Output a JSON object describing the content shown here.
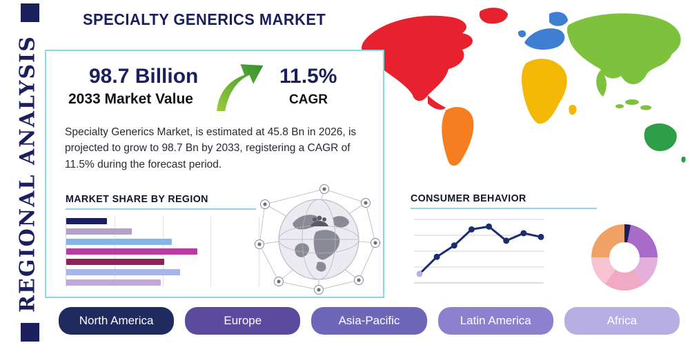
{
  "page": {
    "title": "SPECIALTY GENERICS MARKET",
    "sidebar_label": "REGIONAL ANALYSIS",
    "accent_color": "#8ed6e6",
    "brand_navy": "#1b1f5e"
  },
  "stats": {
    "market_value": "98.7 Billion",
    "market_value_label": "2033 Market Value",
    "cagr_value": "11.5%",
    "cagr_label": "CAGR",
    "growth_icon": "growth-arrow-icon",
    "growth_icon_color": "#3a9e3a"
  },
  "description": "Specialty Generics Market, is estimated at 45.8 Bn in 2026, is projected to grow to 98.7 Bn by 2033, registering a CAGR of 11.5% during the forecast period.",
  "sections": {
    "market_share_heading": "MARKET SHARE BY REGION",
    "consumer_behavior_heading": "CONSUMER BEHAVIOR"
  },
  "map": {
    "north_america": "#e8212e",
    "south_america": "#f57f20",
    "europe": "#3f7fd1",
    "africa": "#f3b705",
    "asia": "#7ec13d",
    "australia": "#2f9e49"
  },
  "region_buttons": [
    {
      "label": "North America",
      "color": "#1f2a5e"
    },
    {
      "label": "Europe",
      "color": "#5c4a9e"
    },
    {
      "label": "Asia-Pacific",
      "color": "#6e66b8"
    },
    {
      "label": "Latin America",
      "color": "#8d80cf"
    },
    {
      "label": "Africa",
      "color": "#b7aee3"
    }
  ],
  "chart_data": [
    {
      "id": "market_share_bars",
      "type": "bar",
      "orientation": "horizontal",
      "title": "MARKET SHARE BY REGION",
      "unit": "relative_width_percent",
      "values": [
        21,
        34,
        55,
        68,
        51,
        59,
        49
      ],
      "colors": [
        "#1b1f5e",
        "#b3a1c7",
        "#8ab4e4",
        "#b93aa0",
        "#8e2157",
        "#a9b4e8",
        "#c4a6dd"
      ],
      "grid": true,
      "legend": false
    },
    {
      "id": "consumer_behavior_line",
      "type": "line",
      "title": "CONSUMER BEHAVIOR",
      "x": [
        1,
        2,
        3,
        4,
        5,
        6,
        7,
        8
      ],
      "values": [
        1.1,
        2.9,
        4.1,
        5.8,
        6.1,
        4.6,
        5.4,
        5.0
      ],
      "ylim": [
        0,
        7
      ],
      "color": "#1c2d6e",
      "marker_first_color": "#b9aee6",
      "grid": true,
      "legend": false
    },
    {
      "id": "regional_donut",
      "type": "pie",
      "donut": true,
      "title": "Regional split donut",
      "values": [
        3,
        22,
        15,
        20,
        15,
        25
      ],
      "colors": [
        "#1b1f5e",
        "#a86bc9",
        "#e3b0dc",
        "#f2a9c4",
        "#f7c3d2",
        "#f0a165"
      ],
      "legend": false
    }
  ]
}
